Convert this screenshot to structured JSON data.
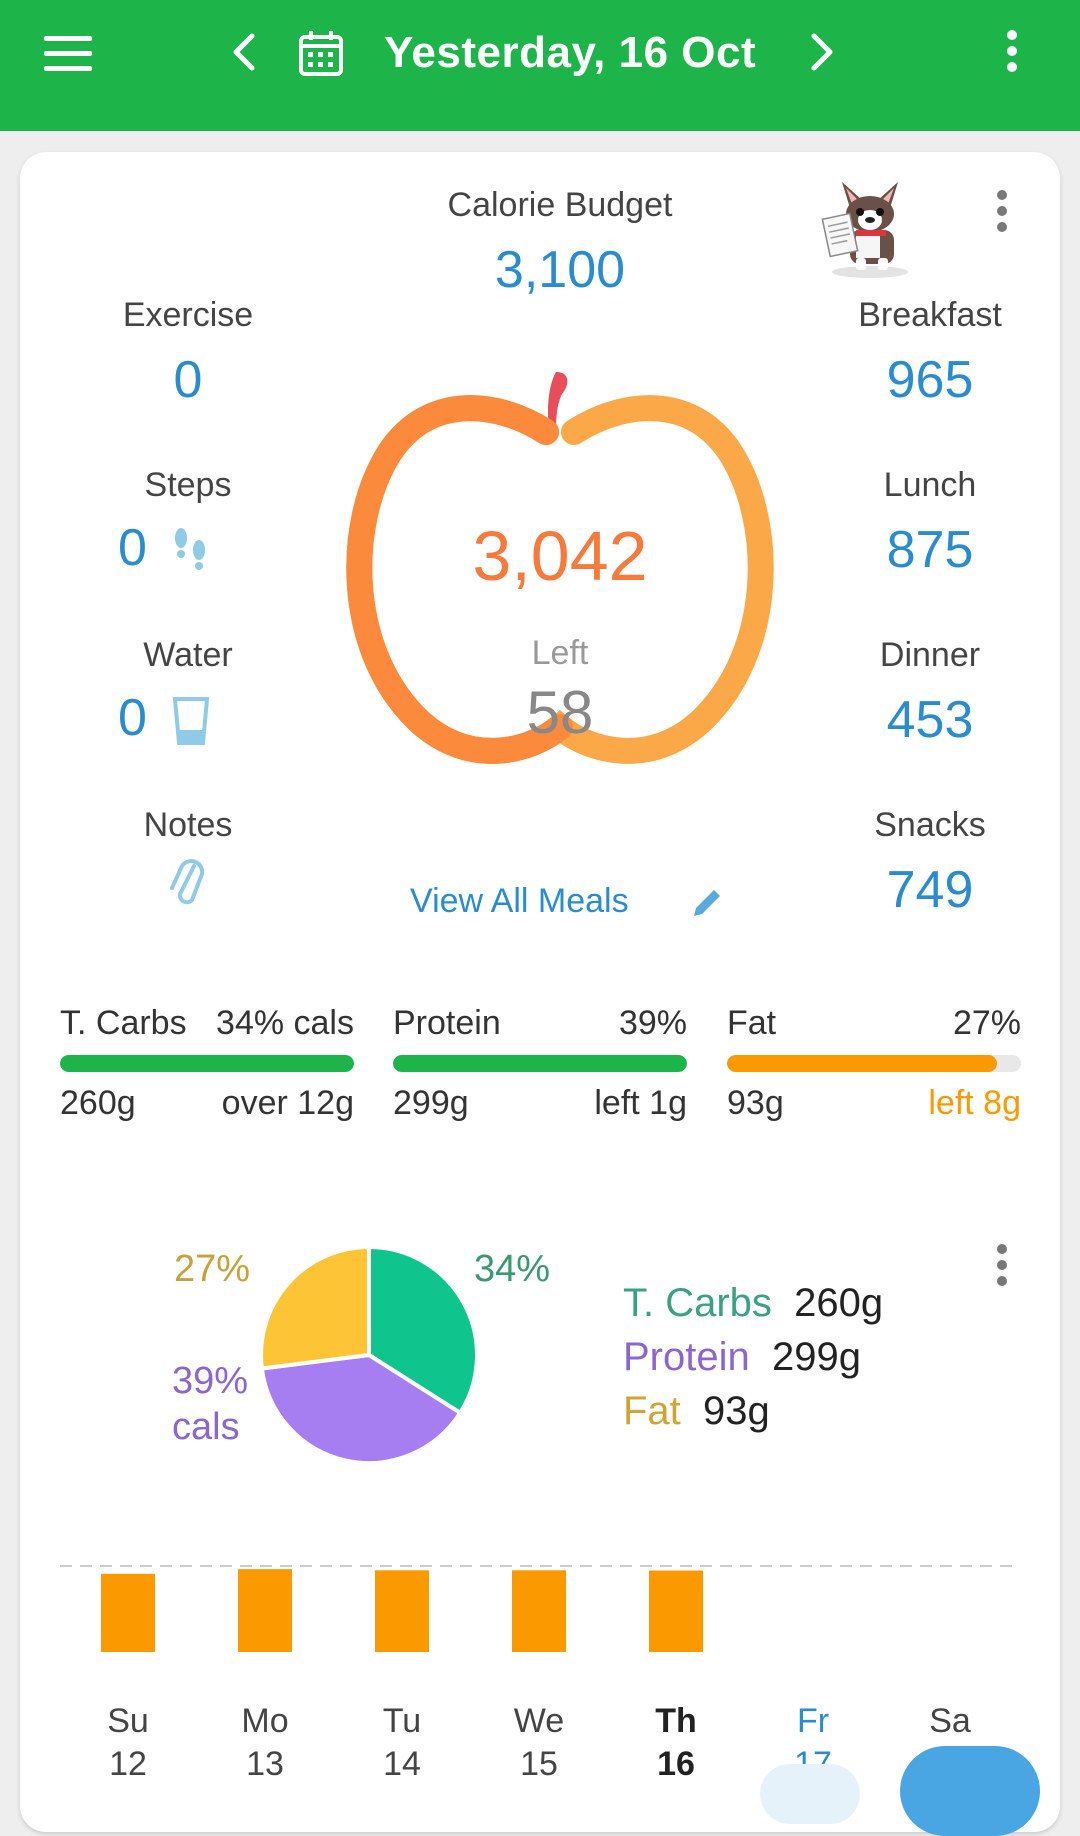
{
  "header": {
    "title": "Yesterday, 16 Oct"
  },
  "summary": {
    "budget_label": "Calorie Budget",
    "budget_value": "3,100",
    "eaten": "3,042",
    "left_label": "Left",
    "left_value": "58",
    "view_all": "View All Meals"
  },
  "left_stats": {
    "exercise_label": "Exercise",
    "exercise_value": "0",
    "steps_label": "Steps",
    "steps_value": "0",
    "water_label": "Water",
    "water_value": "0",
    "notes_label": "Notes"
  },
  "meals": {
    "breakfast_label": "Breakfast",
    "breakfast_value": "965",
    "lunch_label": "Lunch",
    "lunch_value": "875",
    "dinner_label": "Dinner",
    "dinner_value": "453",
    "snacks_label": "Snacks",
    "snacks_value": "749"
  },
  "macros": [
    {
      "name": "T. Carbs",
      "pct": "34% cals",
      "grams": "260g",
      "status": "over 12g",
      "fill": 1.0,
      "color": "#1db44a",
      "status_color": "#333333"
    },
    {
      "name": "Protein",
      "pct": "39%",
      "grams": "299g",
      "status": "left 1g",
      "fill": 1.0,
      "color": "#1db44a",
      "status_color": "#333333"
    },
    {
      "name": "Fat",
      "pct": "27%",
      "grams": "93g",
      "status": "left 8g",
      "fill": 0.92,
      "color": "#fb9a00",
      "status_color": "#fb9a00"
    }
  ],
  "colors": {
    "green": "#1db44a",
    "blue": "#2a8ccf",
    "orange": "#fb9a00",
    "carbs": "#10c48d",
    "protein": "#a77df2",
    "fat": "#fdc536"
  },
  "chart_data": [
    {
      "type": "pie",
      "labels": [
        "T. Carbs",
        "Protein",
        "Fat"
      ],
      "values": [
        34,
        39,
        27
      ],
      "slice_labels": [
        "34%",
        "39%",
        "27%"
      ],
      "unit_label": "cals",
      "legend": [
        {
          "name": "T. Carbs",
          "value": "260g"
        },
        {
          "name": "Protein",
          "value": "299g"
        },
        {
          "name": "Fat",
          "value": "93g"
        }
      ]
    },
    {
      "type": "bar",
      "categories": [
        "Su",
        "Mo",
        "Tu",
        "We",
        "Th",
        "Fr",
        "Sa"
      ],
      "dates": [
        "12",
        "13",
        "14",
        "15",
        "16",
        "17",
        ""
      ],
      "values": [
        3000,
        3060,
        3045,
        3045,
        3042,
        null,
        null
      ],
      "budget": 3100,
      "selected": "Th",
      "today": "Fr"
    }
  ]
}
